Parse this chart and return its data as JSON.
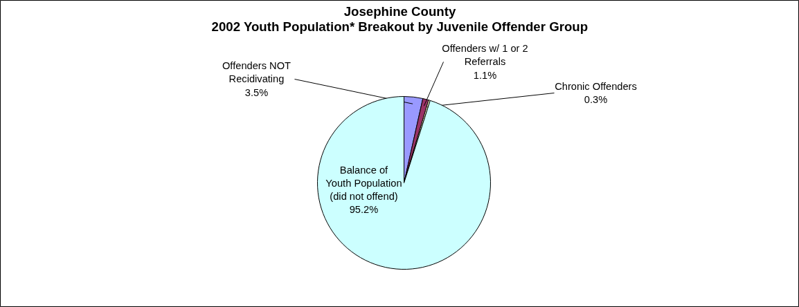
{
  "chart_data": {
    "type": "pie",
    "title": "Josephine County\n2002 Youth Population* Breakout by Juvenile Offender Group",
    "categories": [
      "Offenders NOT\nRecidivating",
      "Offenders w/ 1 or 2\nReferrals",
      "Chronic Offenders",
      "Balance of\nYouth Population\n(did not offend)"
    ],
    "values": [
      3.5,
      1.1,
      0.3,
      95.2
    ],
    "value_labels": [
      "3.5%",
      "1.1%",
      "0.3%",
      "95.2%"
    ],
    "colors": [
      "#9999ff",
      "#993366",
      "#ffffcc",
      "#ccffff"
    ]
  }
}
